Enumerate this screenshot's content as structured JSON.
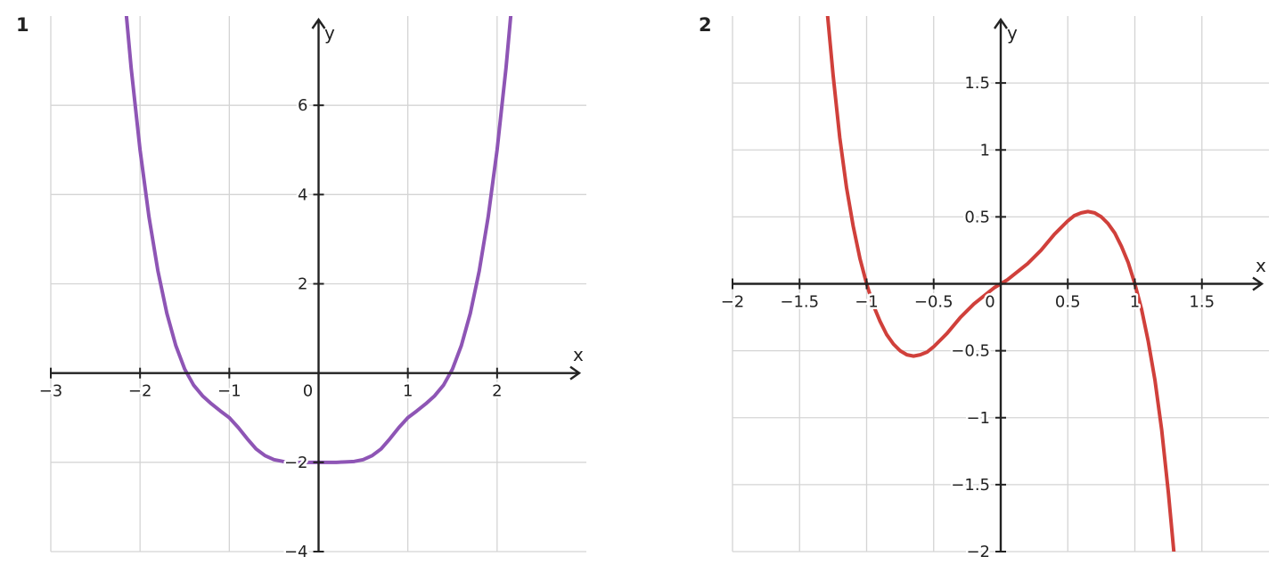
{
  "chart_data": [
    {
      "type": "line",
      "panel_label": "1",
      "title": "",
      "xlabel": "x",
      "ylabel": "y",
      "xlim": [
        -3,
        3
      ],
      "ylim": [
        -4,
        8
      ],
      "xticks": [
        -3,
        -2,
        -1,
        0,
        1,
        2
      ],
      "yticks": [
        -4,
        -2,
        2,
        4,
        6
      ],
      "xtick_labels": [
        "−3",
        "−2",
        "−1",
        "0",
        "1",
        "2"
      ],
      "ytick_labels": [
        "−4",
        "−2",
        "2",
        "4",
        "6"
      ],
      "grid": true,
      "series": [
        {
          "color": "#8e55b5",
          "x": [
            -2.2,
            -2.1,
            -2.0,
            -1.9,
            -1.8,
            -1.7,
            -1.6,
            -1.5,
            -1.4,
            -1.3,
            -1.2,
            -1.1,
            -1.0,
            -0.9,
            -0.8,
            -0.7,
            -0.6,
            -0.5,
            -0.4,
            -0.3,
            -0.2,
            -0.1,
            0.0,
            0.1,
            0.2,
            0.3,
            0.4,
            0.5,
            0.6,
            0.7,
            0.8,
            0.9,
            1.0,
            1.1,
            1.2,
            1.3,
            1.4,
            1.5,
            1.6,
            1.7,
            1.8,
            1.9,
            2.0,
            2.1,
            2.2
          ],
          "y": [
            9.05,
            6.84,
            5.0,
            3.5,
            2.29,
            1.34,
            0.62,
            0.09,
            -0.27,
            -0.51,
            -0.69,
            -0.85,
            -1.0,
            -1.22,
            -1.47,
            -1.7,
            -1.85,
            -1.94,
            -1.98,
            -1.99,
            -2.0,
            -2.0,
            -2.0,
            -2.0,
            -2.0,
            -1.99,
            -1.98,
            -1.94,
            -1.85,
            -1.7,
            -1.47,
            -1.22,
            -1.0,
            -0.85,
            -0.69,
            -0.51,
            -0.27,
            0.09,
            0.62,
            1.34,
            2.29,
            3.5,
            5.0,
            6.84,
            9.05
          ]
        }
      ]
    },
    {
      "type": "line",
      "panel_label": "2",
      "title": "",
      "xlabel": "x",
      "ylabel": "y",
      "xlim": [
        -2,
        2
      ],
      "ylim": [
        -2,
        2
      ],
      "xticks": [
        -2,
        -1.5,
        -1,
        -0.5,
        0,
        0.5,
        1,
        1.5
      ],
      "yticks": [
        -2,
        -1.5,
        -1,
        -0.5,
        0.5,
        1,
        1.5
      ],
      "xtick_labels": [
        "−2",
        "−1.5",
        "−1",
        "−0.5",
        "0",
        "0.5",
        "1",
        "1.5"
      ],
      "ytick_labels": [
        "−2",
        "−1.5",
        "−1",
        "−0.5",
        "0.5",
        "1",
        "1.5"
      ],
      "grid": true,
      "series": [
        {
          "color": "#d0403b",
          "x": [
            -1.3,
            -1.25,
            -1.2,
            -1.15,
            -1.1,
            -1.05,
            -1.0,
            -0.95,
            -0.9,
            -0.85,
            -0.8,
            -0.75,
            -0.7,
            -0.65,
            -0.6,
            -0.55,
            -0.5,
            -0.45,
            -0.4,
            -0.35,
            -0.3,
            -0.25,
            -0.2,
            -0.15,
            -0.1,
            -0.05,
            0.0,
            0.05,
            0.1,
            0.15,
            0.2,
            0.25,
            0.3,
            0.35,
            0.4,
            0.45,
            0.5,
            0.55,
            0.6,
            0.65,
            0.7,
            0.75,
            0.8,
            0.85,
            0.9,
            0.95,
            1.0,
            1.05,
            1.1,
            1.15,
            1.2,
            1.25,
            1.3
          ],
          "y": [
            2.1,
            1.56,
            1.09,
            0.72,
            0.43,
            0.19,
            0.0,
            -0.16,
            -0.28,
            -0.38,
            -0.45,
            -0.5,
            -0.53,
            -0.54,
            -0.53,
            -0.51,
            -0.47,
            -0.42,
            -0.37,
            -0.31,
            -0.25,
            -0.2,
            -0.15,
            -0.11,
            -0.07,
            -0.03,
            0.0,
            0.03,
            0.07,
            0.11,
            0.15,
            0.2,
            0.25,
            0.31,
            0.37,
            0.42,
            0.47,
            0.51,
            0.53,
            0.54,
            0.53,
            0.5,
            0.45,
            0.38,
            0.28,
            0.16,
            0.0,
            -0.19,
            -0.43,
            -0.72,
            -1.09,
            -1.56,
            -2.1
          ]
        }
      ]
    }
  ]
}
